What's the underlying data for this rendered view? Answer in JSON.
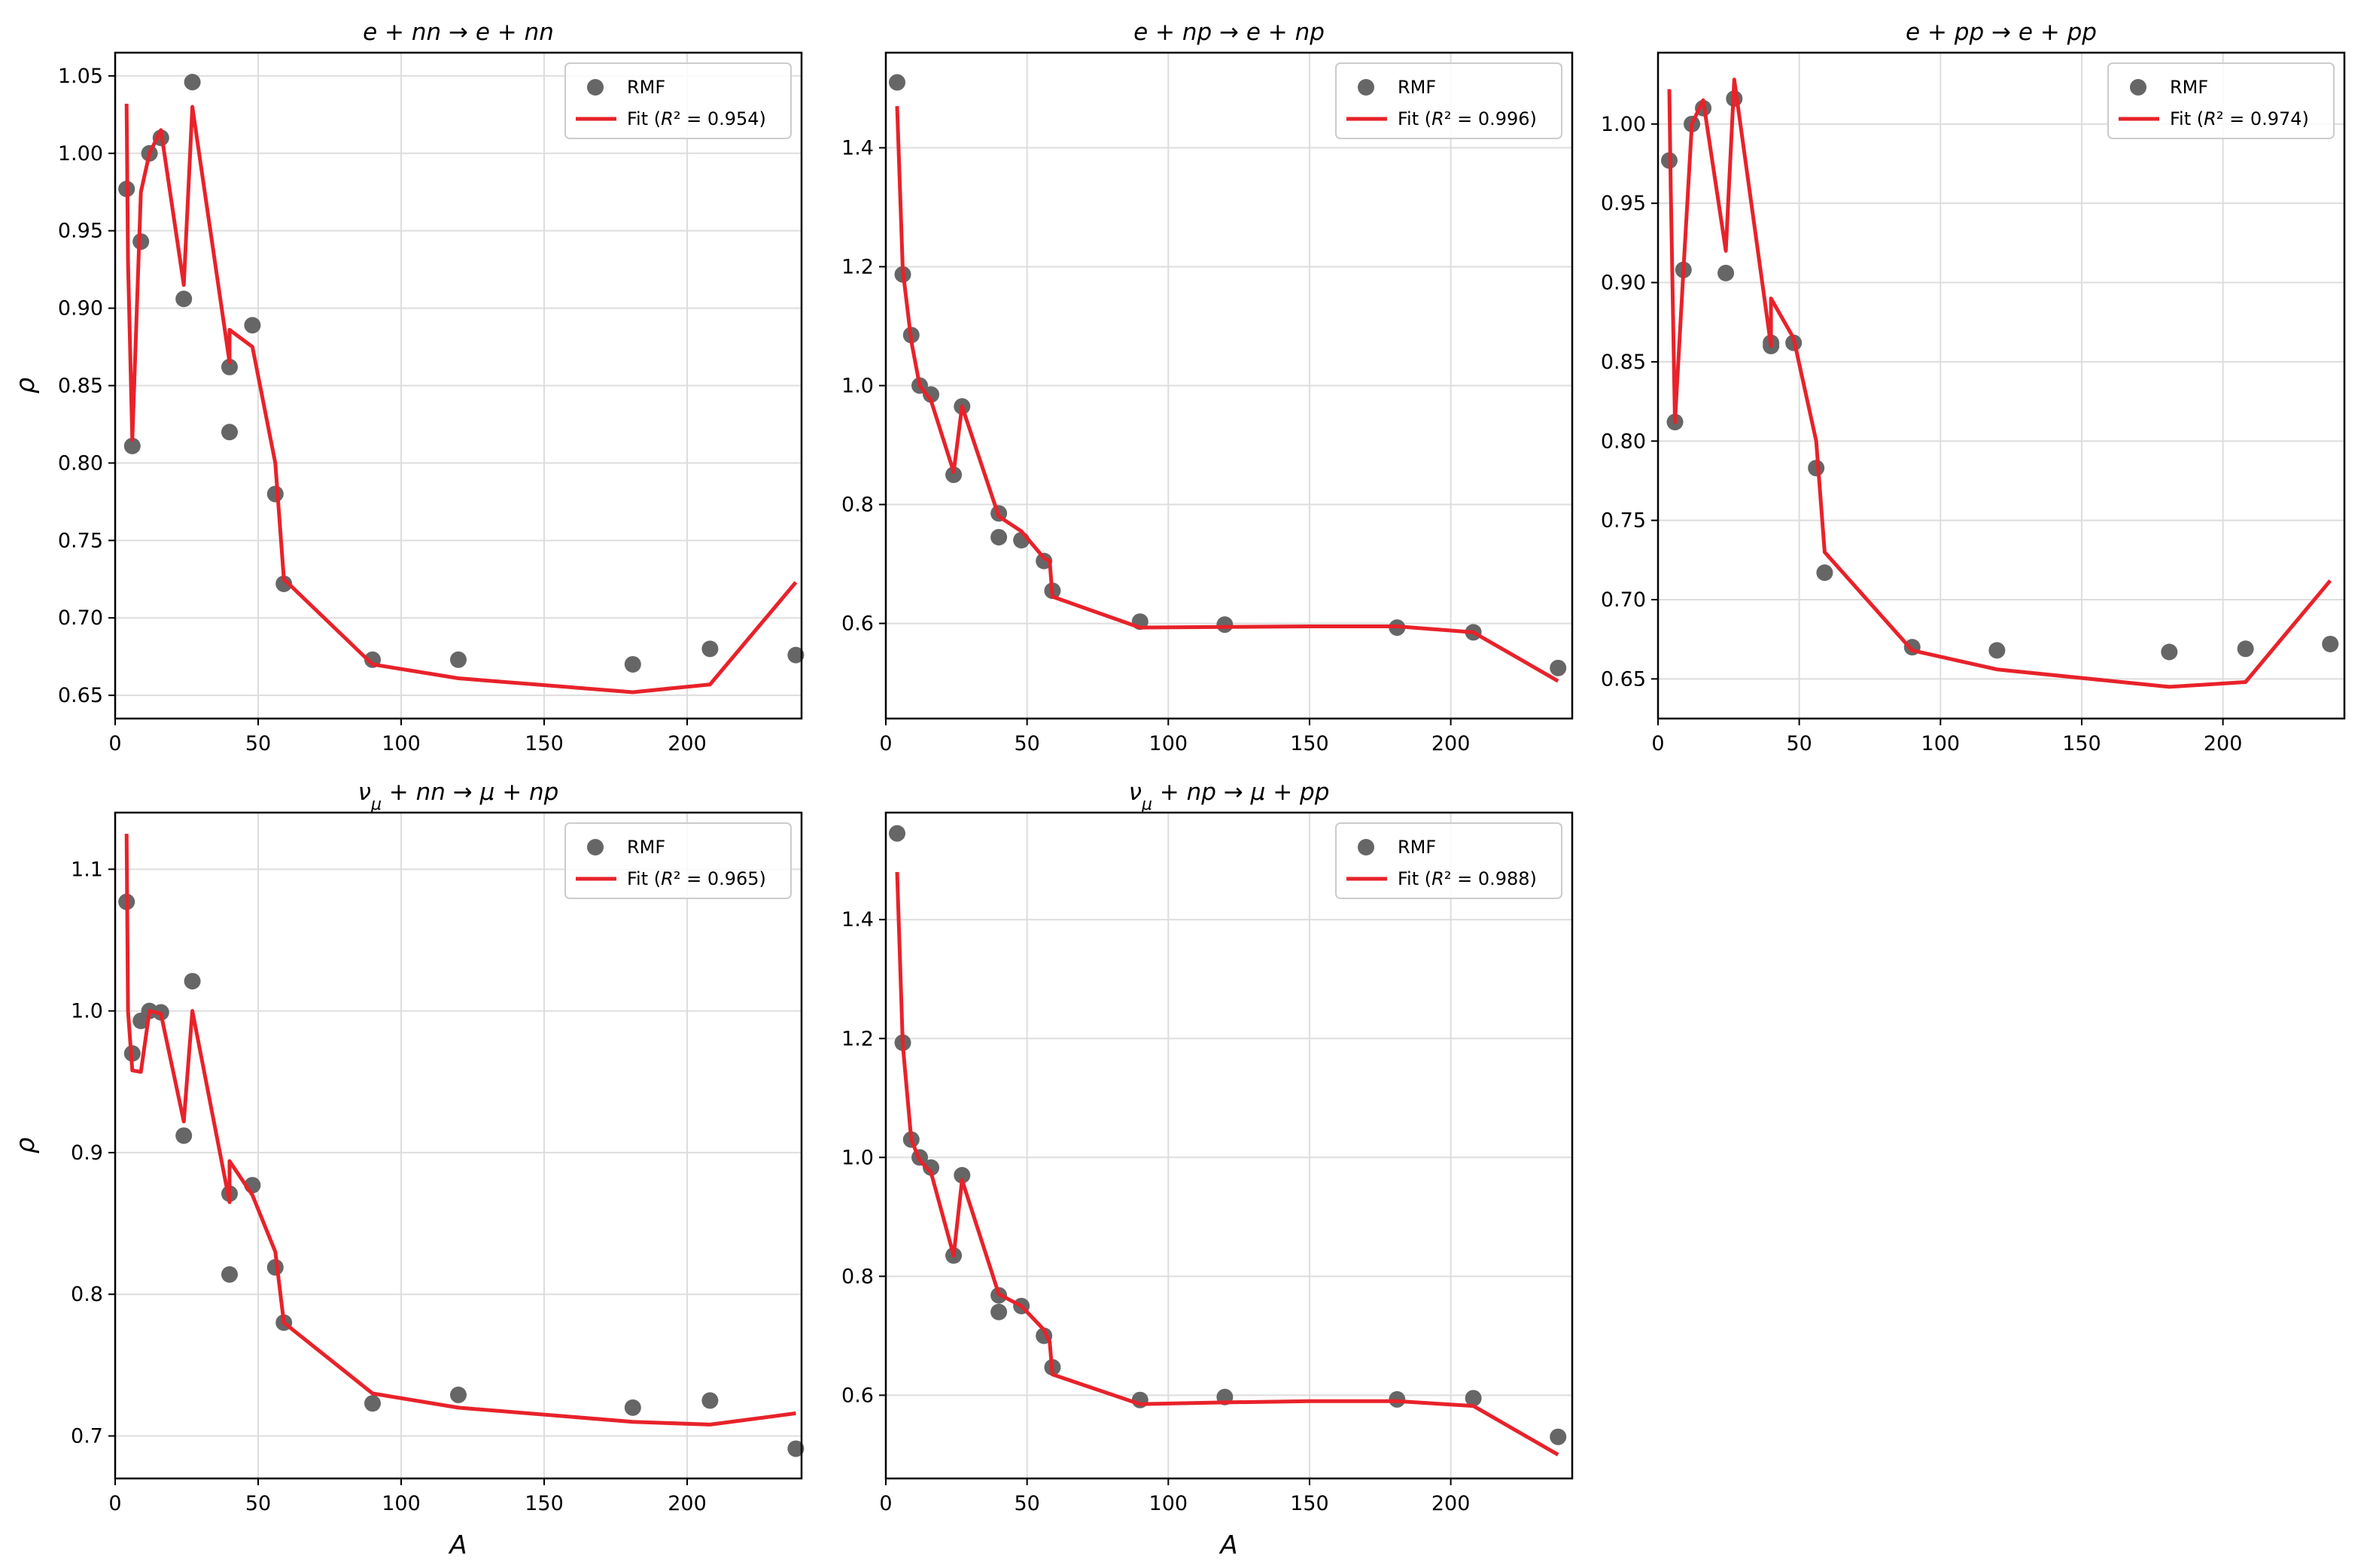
{
  "chart_data": [
    {
      "type": "scatter",
      "title": "e + nn → e + nn",
      "xlabel": "",
      "ylabel": "ρ",
      "xlim": [
        0,
        240
      ],
      "ylim": [
        0.635,
        1.065
      ],
      "xticks": [
        0,
        50,
        100,
        150,
        200
      ],
      "yticks": [
        0.65,
        0.7,
        0.75,
        0.8,
        0.85,
        0.9,
        0.95,
        1.0,
        1.05
      ],
      "grid": true,
      "legend_position": "top-right",
      "series": [
        {
          "name": "RMF",
          "kind": "scatter",
          "color": "#666666",
          "x": [
            4,
            6,
            9,
            12,
            16,
            24,
            27,
            40,
            40,
            48,
            56,
            59,
            90,
            120,
            181,
            208,
            238
          ],
          "y": [
            0.977,
            0.811,
            0.943,
            1.0,
            1.01,
            0.906,
            1.046,
            0.862,
            0.82,
            0.889,
            0.78,
            0.722,
            0.673,
            0.673,
            0.67,
            0.68,
            0.676
          ]
        },
        {
          "name": "Fit (R² = 0.954)",
          "kind": "line",
          "color": "#e8222a",
          "x": [
            4,
            4.5,
            6,
            9,
            12,
            16,
            24,
            27,
            40,
            40,
            48,
            56,
            59,
            90,
            120,
            181,
            208,
            238
          ],
          "y": [
            1.032,
            0.93,
            0.815,
            0.975,
            1.0,
            1.015,
            0.915,
            1.03,
            0.865,
            0.886,
            0.875,
            0.8,
            0.725,
            0.67,
            0.661,
            0.652,
            0.657,
            0.723
          ]
        }
      ]
    },
    {
      "type": "scatter",
      "title": "e + np → e + np",
      "xlabel": "",
      "ylabel": "",
      "xlim": [
        0,
        243
      ],
      "ylim": [
        0.44,
        1.56
      ],
      "xticks": [
        0,
        50,
        100,
        150,
        200
      ],
      "yticks": [
        0.6,
        0.8,
        1.0,
        1.2,
        1.4
      ],
      "grid": true,
      "legend_position": "top-right",
      "series": [
        {
          "name": "RMF",
          "kind": "scatter",
          "color": "#666666",
          "x": [
            4,
            6,
            9,
            12,
            16,
            24,
            27,
            40,
            40,
            48,
            56,
            59,
            90,
            120,
            181,
            208,
            238
          ],
          "y": [
            1.51,
            1.187,
            1.085,
            1.0,
            0.985,
            0.85,
            0.965,
            0.785,
            0.745,
            0.74,
            0.705,
            0.655,
            0.603,
            0.598,
            0.593,
            0.585,
            0.525
          ]
        },
        {
          "name": "Fit (R² = 0.996)",
          "kind": "line",
          "color": "#e8222a",
          "x": [
            4,
            6,
            9,
            12,
            16,
            24,
            27,
            40,
            48,
            56,
            58,
            59,
            90,
            120,
            150,
            181,
            208,
            238
          ],
          "y": [
            1.47,
            1.195,
            1.075,
            1.0,
            0.975,
            0.855,
            0.965,
            0.78,
            0.755,
            0.71,
            0.705,
            0.645,
            0.593,
            0.594,
            0.595,
            0.595,
            0.585,
            0.503
          ]
        }
      ]
    },
    {
      "type": "scatter",
      "title": "e + pp → e + pp",
      "xlabel": "",
      "ylabel": "",
      "xlim": [
        0,
        243
      ],
      "ylim": [
        0.625,
        1.045
      ],
      "xticks": [
        0,
        50,
        100,
        150,
        200
      ],
      "yticks": [
        0.65,
        0.7,
        0.75,
        0.8,
        0.85,
        0.9,
        0.95,
        1.0
      ],
      "grid": true,
      "legend_position": "top-right",
      "series": [
        {
          "name": "RMF",
          "kind": "scatter",
          "color": "#666666",
          "x": [
            4,
            6,
            9,
            12,
            16,
            24,
            27,
            40,
            40,
            48,
            56,
            59,
            90,
            120,
            181,
            208,
            238
          ],
          "y": [
            0.977,
            0.812,
            0.908,
            1.0,
            1.01,
            0.906,
            1.016,
            0.862,
            0.86,
            0.862,
            0.783,
            0.717,
            0.67,
            0.668,
            0.667,
            0.669,
            0.672
          ]
        },
        {
          "name": "Fit (R² = 0.974)",
          "kind": "line",
          "color": "#e8222a",
          "x": [
            4,
            4.5,
            6,
            9,
            12,
            16,
            24,
            27,
            40,
            40,
            48,
            56,
            59,
            90,
            120,
            181,
            208,
            238
          ],
          "y": [
            1.022,
            0.96,
            0.812,
            0.908,
            1.0,
            1.015,
            0.92,
            1.028,
            0.86,
            0.89,
            0.865,
            0.8,
            0.73,
            0.668,
            0.656,
            0.645,
            0.648,
            0.712
          ]
        }
      ]
    },
    {
      "type": "scatter",
      "title": "ν_μ + nn → μ + np",
      "xlabel": "A",
      "ylabel": "ρ",
      "xlim": [
        0,
        240
      ],
      "ylim": [
        0.67,
        1.14
      ],
      "xticks": [
        0,
        50,
        100,
        150,
        200
      ],
      "yticks": [
        0.7,
        0.8,
        0.9,
        1.0,
        1.1
      ],
      "grid": true,
      "legend_position": "top-right",
      "series": [
        {
          "name": "RMF",
          "kind": "scatter",
          "color": "#666666",
          "x": [
            4,
            6,
            9,
            12,
            16,
            24,
            27,
            40,
            40,
            48,
            56,
            59,
            90,
            120,
            181,
            208,
            238
          ],
          "y": [
            1.077,
            0.97,
            0.993,
            1.0,
            0.999,
            0.912,
            1.021,
            0.871,
            0.814,
            0.877,
            0.819,
            0.78,
            0.723,
            0.729,
            0.72,
            0.725,
            0.691
          ]
        },
        {
          "name": "Fit (R² = 0.965)",
          "kind": "line",
          "color": "#e8222a",
          "x": [
            4,
            4.5,
            6,
            9,
            12,
            16,
            24,
            27,
            40,
            40,
            48,
            56,
            59,
            90,
            120,
            181,
            208,
            238
          ],
          "y": [
            1.125,
            1.0,
            0.958,
            0.957,
            1.0,
            0.998,
            0.922,
            1.0,
            0.865,
            0.894,
            0.87,
            0.83,
            0.78,
            0.73,
            0.72,
            0.71,
            0.708,
            0.716
          ]
        }
      ]
    },
    {
      "type": "scatter",
      "title": "ν_μ + np → μ + pp",
      "xlabel": "A",
      "ylabel": "",
      "xlim": [
        0,
        243
      ],
      "ylim": [
        0.46,
        1.58
      ],
      "xticks": [
        0,
        50,
        100,
        150,
        200
      ],
      "yticks": [
        0.6,
        0.8,
        1.0,
        1.2,
        1.4
      ],
      "grid": true,
      "legend_position": "top-right",
      "series": [
        {
          "name": "RMF",
          "kind": "scatter",
          "color": "#666666",
          "x": [
            4,
            6,
            9,
            12,
            16,
            24,
            27,
            40,
            40,
            48,
            56,
            59,
            90,
            120,
            181,
            208,
            238
          ],
          "y": [
            1.545,
            1.193,
            1.03,
            1.0,
            0.983,
            0.835,
            0.97,
            0.768,
            0.74,
            0.75,
            0.7,
            0.647,
            0.592,
            0.597,
            0.593,
            0.595,
            0.53
          ]
        },
        {
          "name": "Fit (R² = 0.988)",
          "kind": "line",
          "color": "#e8222a",
          "x": [
            4,
            6,
            9,
            12,
            16,
            24,
            27,
            40,
            48,
            56,
            58,
            59,
            90,
            120,
            150,
            181,
            208,
            238
          ],
          "y": [
            1.48,
            1.19,
            1.03,
            0.995,
            0.975,
            0.835,
            0.962,
            0.77,
            0.75,
            0.71,
            0.69,
            0.635,
            0.585,
            0.588,
            0.59,
            0.59,
            0.582,
            0.5
          ]
        }
      ]
    }
  ]
}
